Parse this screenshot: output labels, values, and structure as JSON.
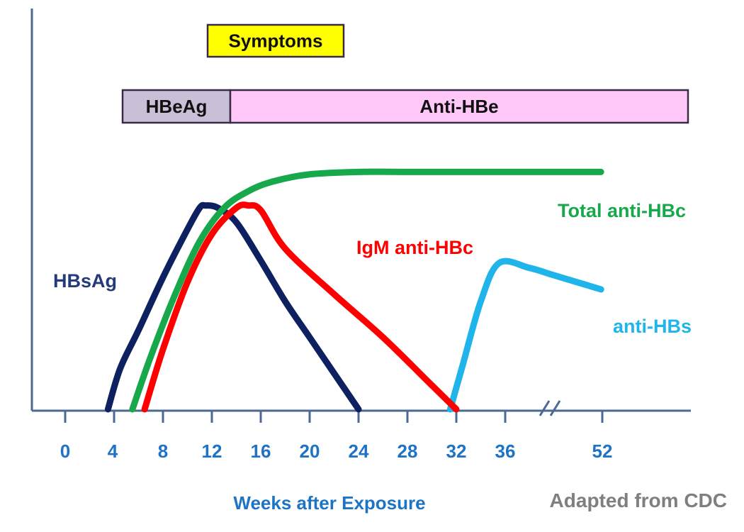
{
  "chart_data": {
    "type": "line",
    "title": "",
    "xlabel": "Weeks after Exposure",
    "ylabel": "",
    "x_ticks": [
      "0",
      "4",
      "8",
      "12",
      "16",
      "20",
      "24",
      "28",
      "32",
      "36",
      "52"
    ],
    "axis_break": "between 36 and 52",
    "grid": false,
    "series": [
      {
        "name": "HBsAg",
        "color": "#0d2160",
        "x": [
          3.5,
          4.5,
          6,
          8,
          10,
          11,
          11.5,
          12.5,
          14,
          16,
          18,
          20,
          22,
          24
        ],
        "y": [
          0,
          17,
          33,
          55,
          75,
          84,
          85,
          84,
          78,
          62,
          45,
          30,
          15,
          0
        ]
      },
      {
        "name": "Total anti-HBc",
        "color": "#16a84a",
        "x": [
          5.5,
          7,
          9,
          11,
          13,
          15,
          17,
          20,
          24,
          28,
          32,
          36,
          38,
          40
        ],
        "y": [
          0,
          22,
          48,
          70,
          84,
          91,
          95,
          98,
          99,
          99,
          99,
          99,
          99,
          99
        ]
      },
      {
        "name": "IgM anti-HBc",
        "color": "#ff0000",
        "x": [
          6.5,
          8,
          10,
          12,
          14,
          15,
          16,
          18,
          22,
          26,
          30,
          32
        ],
        "y": [
          0,
          25,
          53,
          73,
          84,
          85,
          83,
          67,
          48,
          30,
          10,
          0
        ]
      },
      {
        "name": "anti-HBs",
        "color": "#1fb4ea",
        "x": [
          31.5,
          32.5,
          34,
          35.5,
          37,
          38,
          39,
          40
        ],
        "y": [
          0,
          18,
          45,
          61,
          59,
          56,
          53,
          50
        ]
      }
    ],
    "bands": [
      {
        "label": "Symptoms",
        "start": 12,
        "end": 17.5,
        "color": "#ffff00"
      },
      {
        "label": "HBeAg",
        "start": 4.5,
        "end": 13.5,
        "color": "#c9c0d8"
      },
      {
        "label": "Anti-HBe",
        "start": 13.5,
        "end": 40,
        "color": "#ffc8f8"
      }
    ],
    "annotations": [
      {
        "text": "HBsAg",
        "color": "#243a7a"
      },
      {
        "text": "Total anti-HBc",
        "color": "#16a84a"
      },
      {
        "text": "IgM anti-HBc",
        "color": "#ff0000"
      },
      {
        "text": "anti-HBs",
        "color": "#1fb4ea"
      }
    ],
    "credit": "Adapted from CDC"
  }
}
